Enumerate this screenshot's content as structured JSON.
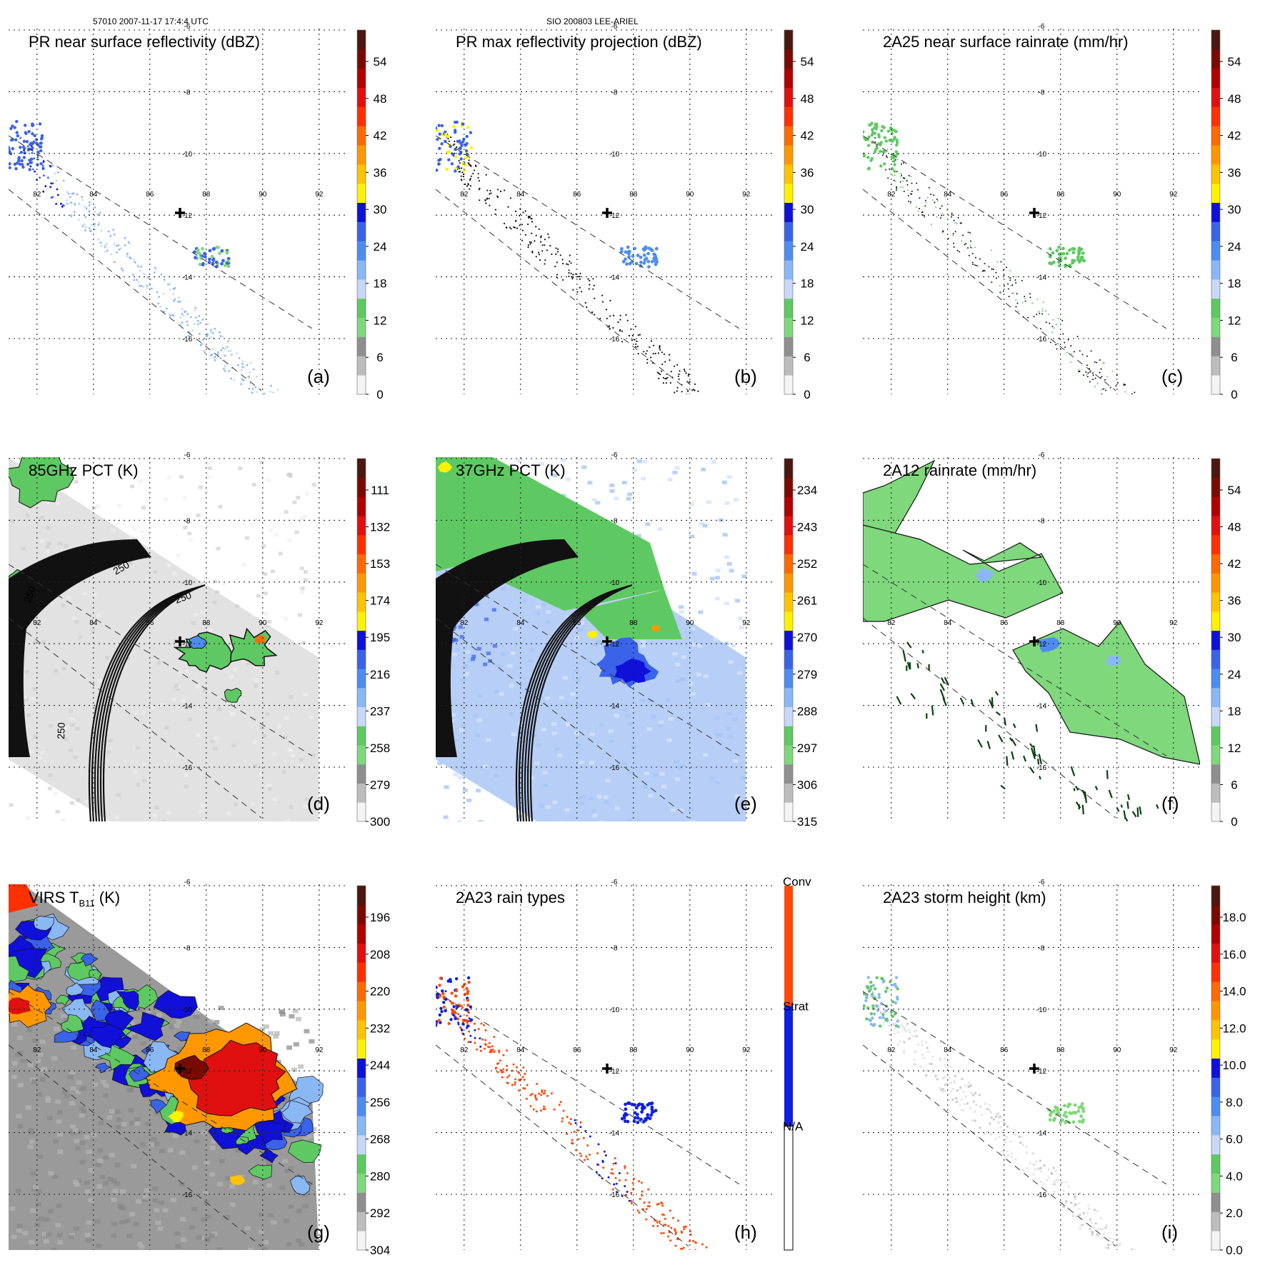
{
  "header": {
    "left": "57010 2007-11-17 17:4:4 UTC",
    "center": "SIO 200803 LEE-ARIEL"
  },
  "grid": {
    "lat_labels": [
      "-6",
      "-8",
      "-10",
      "-12",
      "-14",
      "-16"
    ],
    "lon_labels": [
      "82",
      "84",
      "86",
      "88",
      "90",
      "92"
    ]
  },
  "colors": {
    "ramp": [
      "#f4f4f4",
      "#bdbdbd",
      "#8f8f8f",
      "#7fd87c",
      "#5ec962",
      "#c8d8f8",
      "#8ab8f5",
      "#4d8df0",
      "#3a63ea",
      "#1010d8",
      "#fff200",
      "#ffc400",
      "#ff9800",
      "#ff6a00",
      "#ff3000",
      "#e01010",
      "#b00000",
      "#7a0a00",
      "#4a1810"
    ],
    "conv": "#ff4a0a",
    "strat": "#1020e0",
    "swath": "#111111"
  },
  "panels": [
    {
      "id": "a",
      "letter": "(a)",
      "title": "PR near surface reflectivity (dBZ)",
      "title_sub": "",
      "title_tail": "",
      "ticks": [
        "54",
        "48",
        "42",
        "36",
        "30",
        "24",
        "18",
        "12",
        "6",
        "0"
      ],
      "type": "dots_blue"
    },
    {
      "id": "b",
      "letter": "(b)",
      "title": "PR max reflectivity projection (dBZ)",
      "title_sub": "",
      "title_tail": "",
      "ticks": [
        "54",
        "48",
        "42",
        "36",
        "30",
        "24",
        "18",
        "12",
        "6",
        "0"
      ],
      "type": "dots_contour"
    },
    {
      "id": "c",
      "letter": "(c)",
      "title": "2A25 near surface rainrate (mm/hr)",
      "title_sub": "",
      "title_tail": "",
      "ticks": [
        "54",
        "48",
        "42",
        "36",
        "30",
        "24",
        "18",
        "12",
        "6",
        "0"
      ],
      "type": "dots_green"
    },
    {
      "id": "d",
      "letter": "(d)",
      "title": "85GHz PCT (K)",
      "title_sub": "",
      "title_tail": "",
      "ticks": [
        "111",
        "132",
        "153",
        "174",
        "195",
        "216",
        "237",
        "258",
        "279",
        "300"
      ],
      "type": "pct85"
    },
    {
      "id": "e",
      "letter": "(e)",
      "title": "37GHz PCT (K)",
      "title_sub": "",
      "title_tail": "",
      "ticks": [
        "234",
        "243",
        "252",
        "261",
        "270",
        "279",
        "288",
        "297",
        "306",
        "315"
      ],
      "type": "pct37"
    },
    {
      "id": "f",
      "letter": "(f)",
      "title": "2A12 rainrate (mm/hr)",
      "title_sub": "",
      "title_tail": "",
      "ticks": [
        "54",
        "48",
        "42",
        "36",
        "30",
        "24",
        "18",
        "12",
        "6",
        "0"
      ],
      "type": "rain2a12"
    },
    {
      "id": "g",
      "letter": "(g)",
      "title": "VIRS T",
      "title_sub": "B11",
      "title_tail": " (K)",
      "ticks": [
        "196",
        "208",
        "220",
        "232",
        "244",
        "256",
        "268",
        "280",
        "292",
        "304"
      ],
      "type": "virs"
    },
    {
      "id": "h",
      "letter": "(h)",
      "title": "2A23 rain types",
      "title_sub": "",
      "title_tail": "",
      "ticks": [
        "Conv",
        "Strat",
        "N/A"
      ],
      "type": "raintype"
    },
    {
      "id": "i",
      "letter": "(i)",
      "title": "2A23 storm height (km)",
      "title_sub": "",
      "title_tail": "",
      "ticks": [
        "18.0",
        "16.0",
        "14.0",
        "12.0",
        "10.0",
        "8.0",
        "6.0",
        "4.0",
        "2.0",
        "0.0"
      ],
      "type": "height"
    }
  ],
  "annotations": {
    "pct85_contour": "250"
  }
}
